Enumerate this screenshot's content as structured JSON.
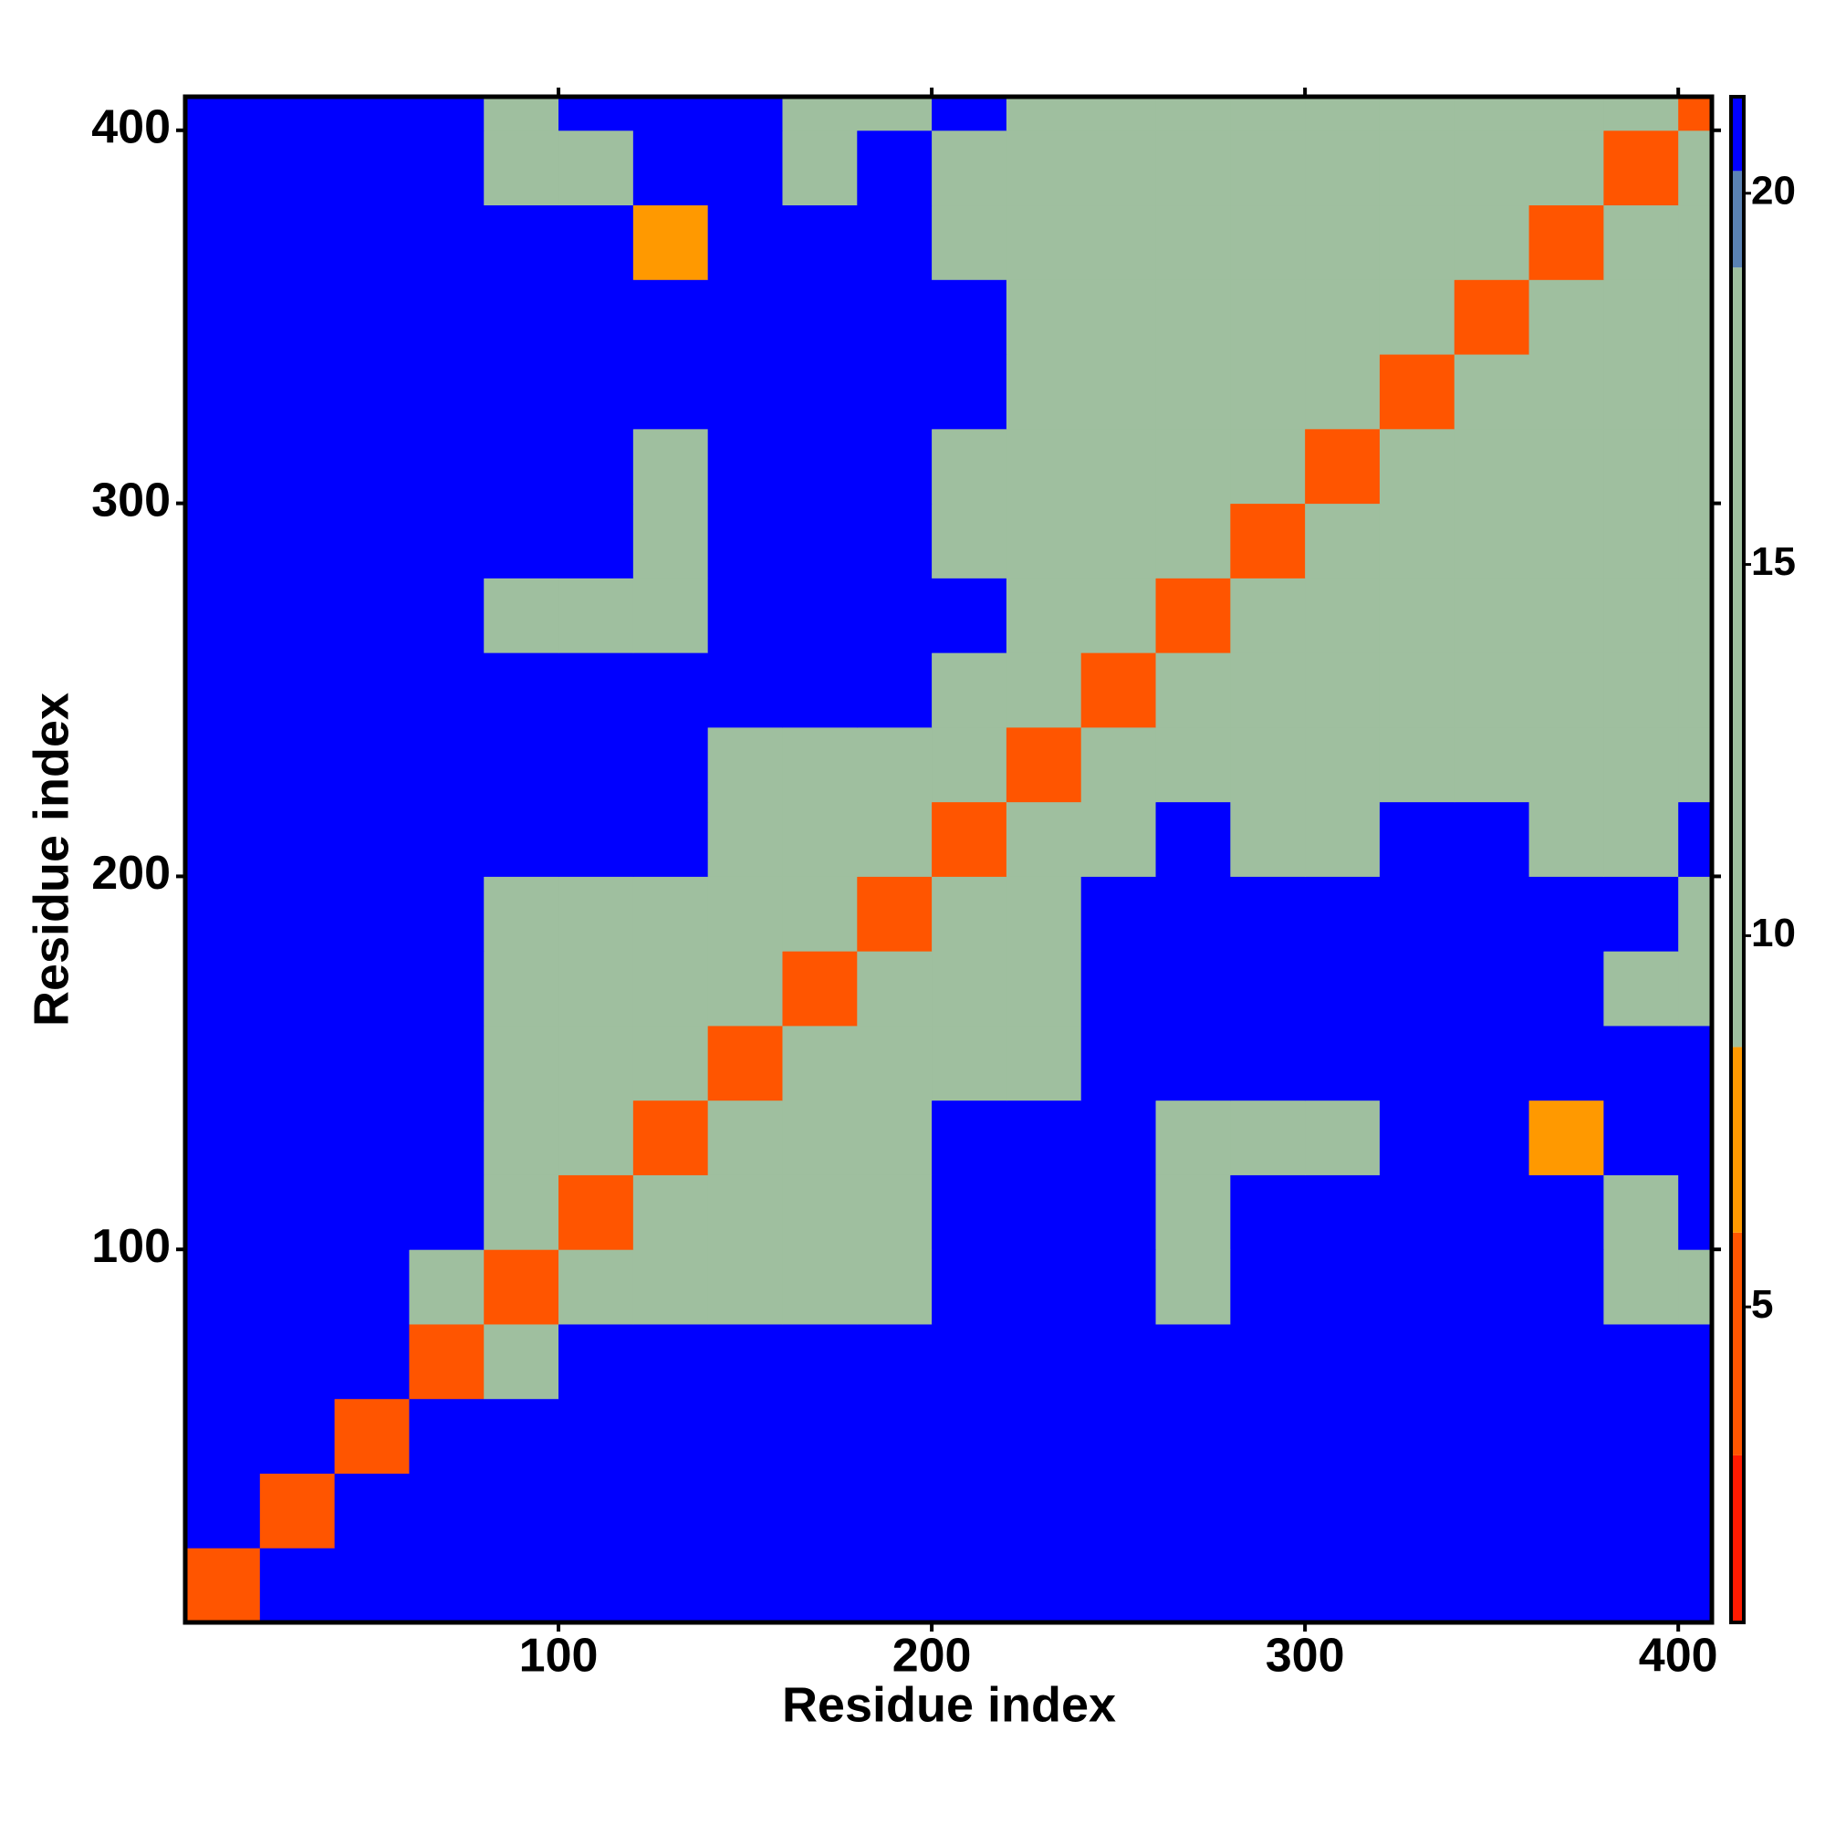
{
  "chart_data": {
    "type": "heatmap",
    "xlabel": "Residue index",
    "ylabel": "Residue index",
    "xlim": [
      0,
      409
    ],
    "ylim": [
      0,
      409
    ],
    "xticks": [
      100,
      200,
      300,
      400
    ],
    "yticks": [
      100,
      200,
      300,
      400
    ],
    "xbins": [
      0,
      20,
      40,
      60,
      80,
      100,
      120,
      140,
      160,
      180,
      200,
      220,
      240,
      260,
      280,
      300,
      320,
      340,
      360,
      380,
      400,
      409
    ],
    "ybins": [
      0,
      20,
      40,
      60,
      80,
      100,
      120,
      140,
      160,
      180,
      200,
      220,
      240,
      260,
      280,
      300,
      320,
      340,
      360,
      380,
      400,
      409
    ],
    "z": [
      [
        4,
        21,
        21,
        21,
        21,
        21,
        21,
        21,
        21,
        21,
        21,
        21,
        21,
        21,
        21,
        21,
        21,
        21,
        21,
        21,
        21
      ],
      [
        21,
        4,
        21,
        21,
        21,
        21,
        21,
        21,
        21,
        21,
        21,
        21,
        21,
        21,
        21,
        21,
        21,
        21,
        21,
        21,
        21
      ],
      [
        21,
        21,
        4,
        21,
        21,
        21,
        21,
        21,
        21,
        21,
        21,
        21,
        21,
        21,
        21,
        21,
        21,
        21,
        21,
        21,
        21
      ],
      [
        21,
        21,
        21,
        4,
        14,
        21,
        21,
        21,
        21,
        21,
        21,
        21,
        21,
        21,
        21,
        21,
        21,
        21,
        21,
        21,
        21
      ],
      [
        21,
        21,
        21,
        14,
        4,
        11,
        11,
        11,
        14,
        14,
        21,
        21,
        21,
        14,
        21,
        21,
        21,
        21,
        21,
        12,
        12
      ],
      [
        21,
        21,
        21,
        21,
        11,
        4,
        11,
        11,
        11,
        14,
        21,
        21,
        21,
        14,
        21,
        21,
        21,
        21,
        21,
        14,
        21
      ],
      [
        21,
        21,
        21,
        21,
        11,
        11,
        4,
        11,
        11,
        11,
        21,
        21,
        21,
        14,
        14,
        14,
        21,
        21,
        8,
        21,
        21
      ],
      [
        21,
        21,
        21,
        21,
        11,
        11,
        11,
        4,
        11,
        11,
        11,
        11,
        21,
        21,
        21,
        21,
        21,
        21,
        21,
        21,
        21
      ],
      [
        21,
        21,
        21,
        21,
        14,
        11,
        11,
        11,
        4,
        11,
        11,
        11,
        21,
        21,
        21,
        21,
        21,
        21,
        21,
        14,
        14
      ],
      [
        21,
        21,
        21,
        21,
        14,
        14,
        11,
        11,
        11,
        4,
        11,
        11,
        21,
        21,
        21,
        21,
        21,
        21,
        21,
        21,
        14
      ],
      [
        21,
        21,
        21,
        21,
        21,
        21,
        21,
        11,
        11,
        11,
        4,
        11,
        14,
        21,
        14,
        14,
        21,
        21,
        14,
        14,
        21
      ],
      [
        21,
        21,
        21,
        21,
        21,
        21,
        21,
        11,
        11,
        11,
        11,
        4,
        11,
        11,
        14,
        14,
        14,
        14,
        14,
        14,
        14
      ],
      [
        21,
        21,
        21,
        21,
        21,
        21,
        21,
        21,
        21,
        21,
        14,
        11,
        4,
        11,
        11,
        14,
        14,
        14,
        14,
        14,
        14
      ],
      [
        21,
        21,
        21,
        21,
        14,
        14,
        14,
        21,
        21,
        21,
        21,
        11,
        11,
        4,
        11,
        11,
        14,
        14,
        14,
        14,
        14
      ],
      [
        21,
        21,
        21,
        21,
        21,
        21,
        14,
        21,
        21,
        21,
        14,
        14,
        11,
        11,
        4,
        11,
        11,
        14,
        14,
        14,
        14
      ],
      [
        21,
        21,
        21,
        21,
        21,
        21,
        14,
        21,
        21,
        21,
        14,
        14,
        14,
        11,
        11,
        4,
        11,
        11,
        14,
        14,
        14
      ],
      [
        21,
        21,
        21,
        21,
        21,
        21,
        21,
        21,
        21,
        21,
        21,
        14,
        14,
        14,
        11,
        11,
        4,
        11,
        11,
        14,
        14
      ],
      [
        21,
        21,
        21,
        21,
        21,
        21,
        21,
        21,
        21,
        21,
        21,
        14,
        14,
        14,
        14,
        11,
        11,
        4,
        11,
        11,
        14
      ],
      [
        21,
        21,
        21,
        21,
        21,
        21,
        8,
        21,
        21,
        21,
        14,
        14,
        14,
        14,
        14,
        14,
        11,
        11,
        4,
        11,
        11
      ],
      [
        21,
        21,
        21,
        21,
        12,
        14,
        21,
        21,
        14,
        21,
        14,
        14,
        14,
        14,
        14,
        14,
        14,
        11,
        11,
        4,
        11
      ],
      [
        21,
        21,
        21,
        21,
        12,
        21,
        21,
        21,
        14,
        14,
        21,
        14,
        14,
        14,
        14,
        14,
        14,
        14,
        11,
        11,
        4
      ]
    ],
    "color_edges": [
      0.75,
      3,
      6,
      8.5,
      19,
      20.3,
      21.3
    ],
    "colors": [
      "#ff1a00",
      "#ff5500",
      "#ff9900",
      "#9fbf9f",
      "#5a82b4",
      "#0000ff"
    ],
    "colorbar_lim": [
      0.75,
      21.3
    ],
    "colorbar_ticks": [
      5,
      10,
      15,
      20
    ]
  }
}
